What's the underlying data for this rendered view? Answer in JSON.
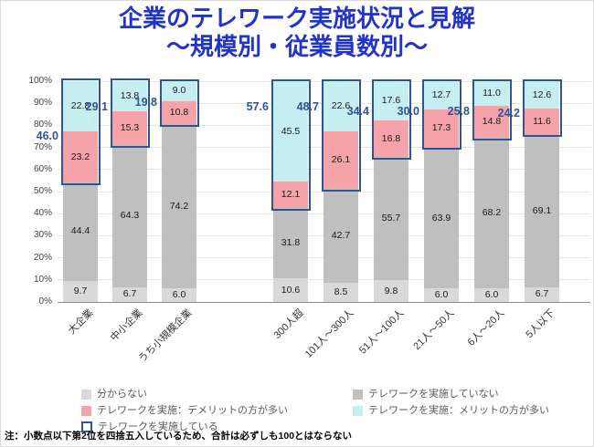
{
  "title": {
    "line1": "企業のテレワーク実施状況と見解",
    "line2": "～規模別・従業員数別～"
  },
  "note": "注：小数点以下第2位を四捨五入しているため、合計は必ずしも100とはならない",
  "chart_data": {
    "type": "bar",
    "stacked": true,
    "title": "企業のテレワーク実施状況と見解 ～規模別・従業員数別～",
    "categories": [
      "大企業",
      "中小企業",
      "うち小規模企業",
      "300人超",
      "101人～300人",
      "51人～100人",
      "21人～50人",
      "6人～20人",
      "5人以下"
    ],
    "group_split_after": 3,
    "series": [
      {
        "name": "分からない",
        "color": "#d9d9d9",
        "values": [
          9.7,
          6.7,
          6.0,
          10.6,
          8.5,
          9.8,
          6.0,
          6.0,
          6.7
        ]
      },
      {
        "name": "テレワークを実施していない",
        "color": "#bfbfbf",
        "values": [
          44.4,
          64.3,
          74.2,
          31.8,
          42.7,
          55.7,
          63.9,
          68.2,
          69.1
        ]
      },
      {
        "name": "テレワークを実施：デメリットの方が多い",
        "color": "#f5a3a8",
        "values": [
          23.2,
          15.3,
          10.8,
          12.1,
          26.1,
          16.8,
          17.3,
          14.8,
          11.6
        ]
      },
      {
        "name": "テレワークを実施：メリットの方が多い",
        "color": "#c5eef1",
        "values": [
          22.8,
          13.8,
          9.0,
          45.5,
          22.6,
          17.6,
          12.7,
          11.0,
          12.6
        ]
      }
    ],
    "outline_series": {
      "name": "テレワークを実施している",
      "color": "#2F5496",
      "values": [
        46.0,
        29.1,
        19.8,
        57.6,
        48.7,
        34.4,
        30.0,
        25.8,
        24.2
      ],
      "label_y_pct": [
        75,
        88,
        90,
        88,
        88,
        86,
        86,
        86,
        85
      ]
    },
    "y_ticks": [
      "0%",
      "10%",
      "20%",
      "30%",
      "40%",
      "50%",
      "60%",
      "70%",
      "80%",
      "90%",
      "100%"
    ],
    "ylim": [
      0,
      100
    ],
    "grid": true,
    "legend_position": "bottom"
  }
}
